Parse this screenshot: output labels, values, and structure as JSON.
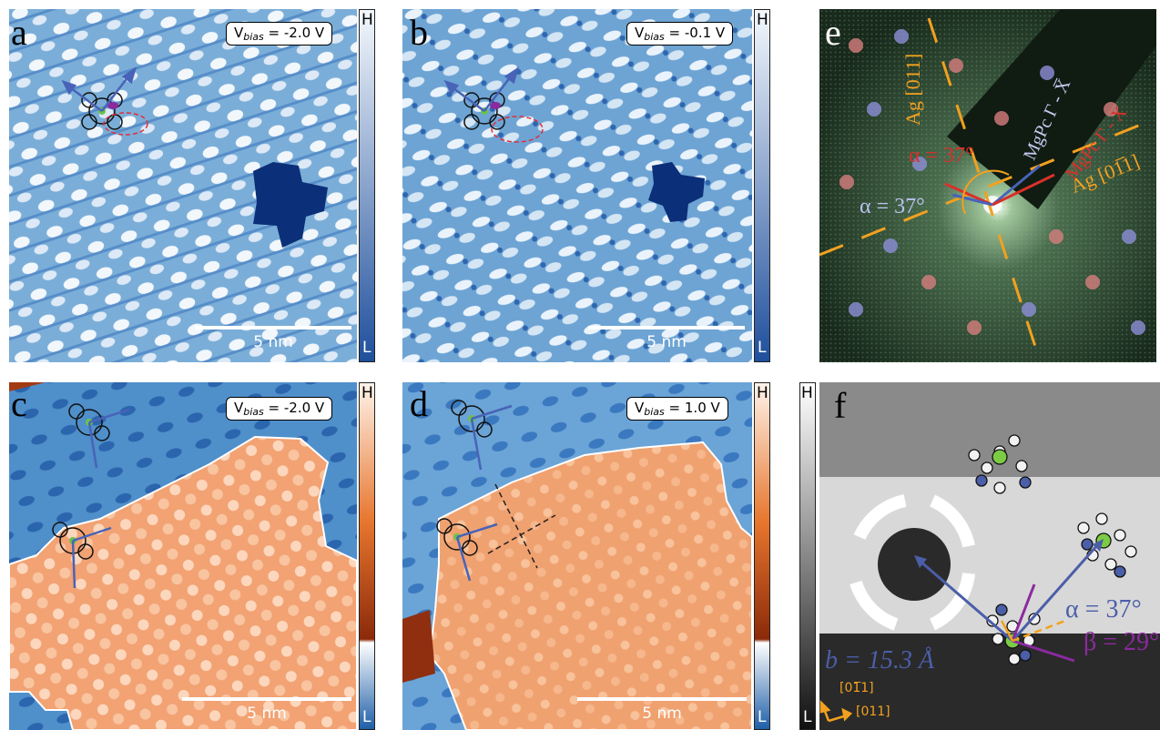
{
  "panels": {
    "a": {
      "label": "a",
      "vbias_prefix": "V",
      "vbias_sub": "bias",
      "vbias_value": " = -2.0 V",
      "scale": "5 nm",
      "cbar_high": "H",
      "cbar_low": "L"
    },
    "b": {
      "label": "b",
      "vbias_prefix": "V",
      "vbias_sub": "bias",
      "vbias_value": " = -0.1 V",
      "scale": "5 nm",
      "cbar_high": "H",
      "cbar_low": "L"
    },
    "c": {
      "label": "c",
      "vbias_prefix": "V",
      "vbias_sub": "bias",
      "vbias_value": " = -2.0 V",
      "scale": "5 nm",
      "cbar_high": "H",
      "cbar_low": "L"
    },
    "d": {
      "label": "d",
      "vbias_prefix": "V",
      "vbias_sub": "bias",
      "vbias_value": " = 1.0 V",
      "scale": "5 nm",
      "cbar_high": "H",
      "cbar_low": "L"
    },
    "e": {
      "label": "e",
      "ag_011": "Ag [011]",
      "ag_0m11": "Ag [01̅1]",
      "mgpc_blue": "MgPc Γ - X̅",
      "mgpc_red": "MgPc Γ - X",
      "alpha_red": "α = 37°",
      "alpha_blue": "α = 37°"
    },
    "f": {
      "label": "f",
      "cbar_high": "H",
      "cbar_low": "L",
      "b_len": "b = 15.3 Å",
      "alpha": "α = 37°",
      "beta": "β = 29°",
      "dir1": "[01̅1]",
      "dir2": "[011]"
    }
  },
  "colors": {
    "stm_blue_light": "#e9f2fa",
    "stm_blue_dark": "#1f4f9c",
    "stm_orange": "#f0a170",
    "stm_orange_dark": "#a33a12",
    "leed_bg": "#1a2a1c",
    "arrow_blue": "#4863b8",
    "arrow_red": "#d8302a",
    "leed_orange": "#f2a11f",
    "f_purple": "#8a2a9e",
    "f_blue": "#4b5ea8"
  }
}
